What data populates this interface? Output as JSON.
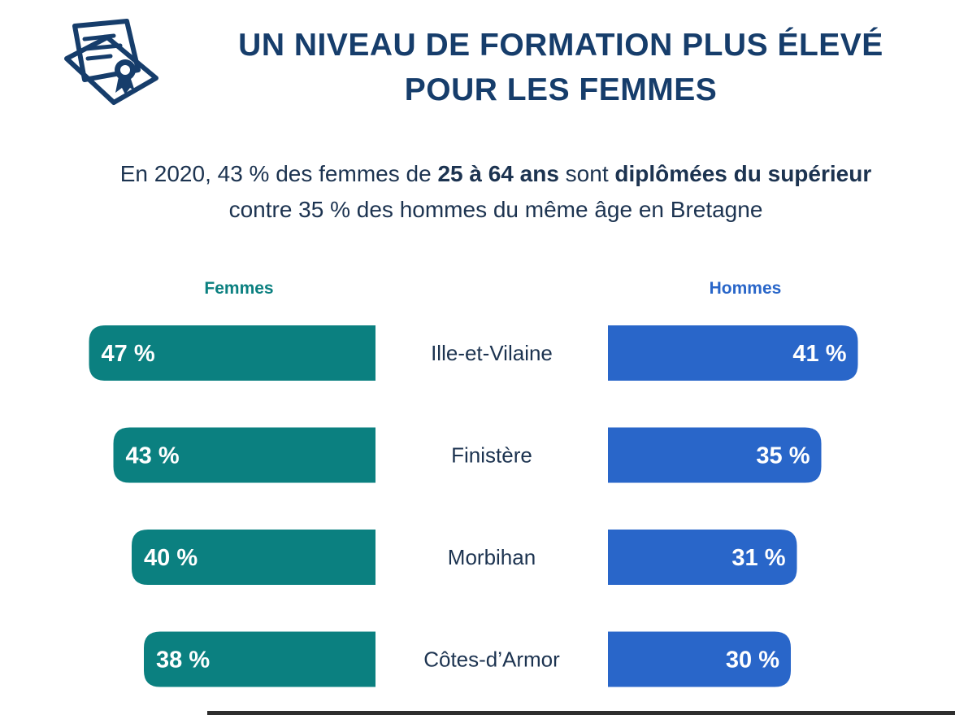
{
  "header": {
    "title_line1": "UN NIVEAU DE FORMATION PLUS ÉLEVÉ",
    "title_line2": "POUR LES FEMMES",
    "icon": "diploma-certificate-icon"
  },
  "subtitle": {
    "line1_part1": "En 2020, 43 % des femmes de ",
    "line1_bold1": "25 à 64 ans",
    "line1_part2": " sont ",
    "line1_bold2": "diplômées du supérieur",
    "line2": "contre 35 % des hommes du même âge en Bretagne"
  },
  "colors": {
    "title": "#163d6b",
    "femmes": "#0b8080",
    "hommes": "#2966c9"
  },
  "chart_data": {
    "type": "bar",
    "orientation": "horizontal-butterfly",
    "categories": [
      "Ille-et-Vilaine",
      "Finistère",
      "Morbihan",
      "Côtes-d’Armor"
    ],
    "series": [
      {
        "name": "Femmes",
        "values": [
          47,
          43,
          40,
          38
        ],
        "labels": [
          "47 %",
          "43 %",
          "40 %",
          "38 %"
        ]
      },
      {
        "name": "Hommes",
        "values": [
          41,
          35,
          31,
          30
        ],
        "labels": [
          "41 %",
          "35 %",
          "31 %",
          "30 %"
        ]
      }
    ],
    "unit": "%"
  }
}
